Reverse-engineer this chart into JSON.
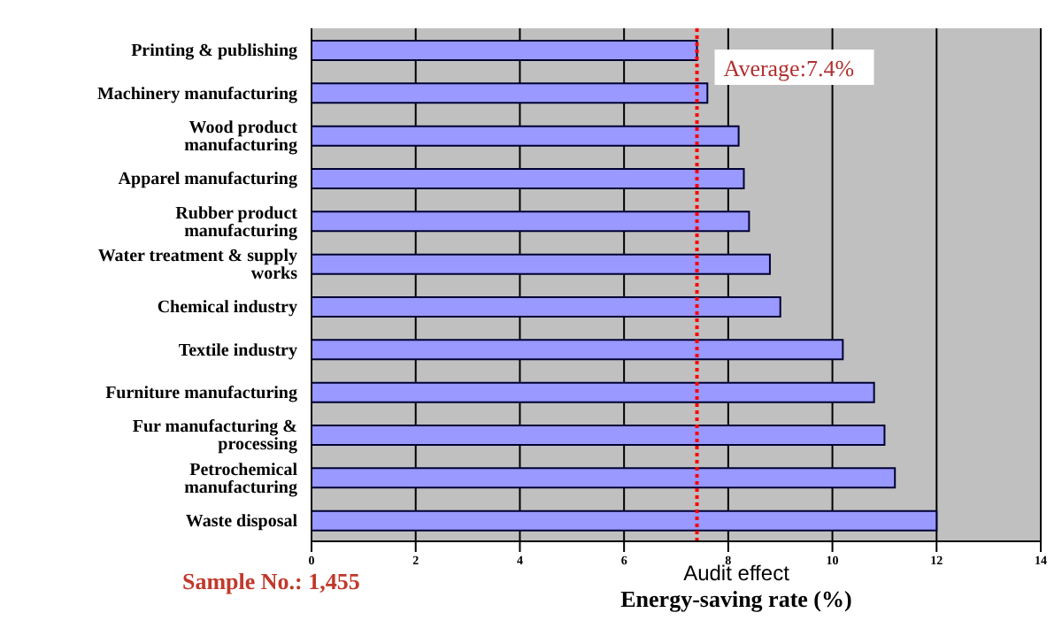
{
  "chart_data": {
    "type": "bar",
    "orientation": "horizontal",
    "categories": [
      "Printing & publishing",
      "Machinery manufacturing",
      "Wood product manufacturing",
      "Apparel manufacturing",
      "Rubber product manufacturing",
      "Water treatment & supply works",
      "Chemical industry",
      "Textile industry",
      "Furniture manufacturing",
      "Fur manufacturing & processing",
      "Petrochemical manufacturing",
      "Waste disposal"
    ],
    "values": [
      7.4,
      7.6,
      8.2,
      8.3,
      8.4,
      8.8,
      9.0,
      10.2,
      10.8,
      11.0,
      11.2,
      12.0
    ],
    "color": "#9999ff",
    "xlim": [
      0,
      14
    ],
    "xticks": [
      0,
      2,
      4,
      6,
      8,
      10,
      12,
      14
    ],
    "grid": "x",
    "xlabel": "Audit effect\nEnergy-saving rate (%)",
    "ref_lines": [
      {
        "axis": "x",
        "value": 7.4,
        "label": "Average:7.4%",
        "color": "#ff0000",
        "line_style": "dotted"
      }
    ],
    "annotations": [
      "Sample No.: 1,455"
    ]
  }
}
